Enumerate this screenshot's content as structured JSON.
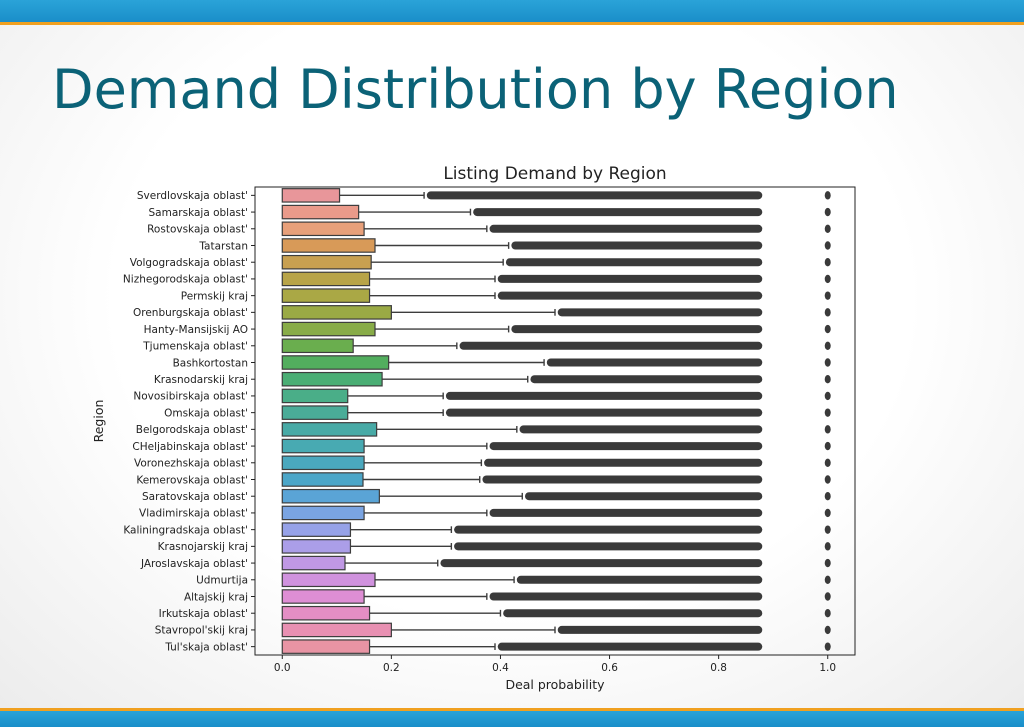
{
  "slide": {
    "title": "Demand Distribution by Region"
  },
  "chart_data": {
    "type": "box",
    "orientation": "horizontal",
    "title": "Listing Demand by Region",
    "xlabel": "Deal probability",
    "ylabel": "Region",
    "xlim": [
      -0.05,
      1.05
    ],
    "xticks": [
      0.0,
      0.2,
      0.4,
      0.6,
      0.8,
      1.0
    ],
    "xtick_labels": [
      "0.0",
      "0.2",
      "0.4",
      "0.6",
      "0.8",
      "1.0"
    ],
    "grid": false,
    "categories": [
      "Sverdlovskaja oblast'",
      "Samarskaja oblast'",
      "Rostovskaja oblast'",
      "Tatarstan",
      "Volgogradskaja oblast'",
      "Nizhegorodskaja oblast'",
      "Permskij kraj",
      "Orenburgskaja oblast'",
      "Hanty-Mansijskij AO",
      "Tjumenskaja oblast'",
      "Bashkortostan",
      "Krasnodarskij kraj",
      "Novosibirskaja oblast'",
      "Omskaja oblast'",
      "Belgorodskaja oblast'",
      "CHeljabinskaja oblast'",
      "Voronezhskaja oblast'",
      "Kemerovskaja oblast'",
      "Saratovskaja oblast'",
      "Vladimirskaja oblast'",
      "Kaliningradskaja oblast'",
      "Krasnojarskij kraj",
      "JAroslavskaja oblast'",
      "Udmurtija",
      "Altajskij kraj",
      "Irkutskaja oblast'",
      "Stavropol'skij kraj",
      "Tul'skaja oblast'"
    ],
    "q1": [
      0,
      0,
      0,
      0,
      0,
      0,
      0,
      0,
      0,
      0,
      0,
      0,
      0,
      0,
      0,
      0,
      0,
      0,
      0,
      0,
      0,
      0,
      0,
      0,
      0,
      0,
      0,
      0
    ],
    "median": [
      0,
      0,
      0,
      0,
      0,
      0,
      0,
      0,
      0,
      0,
      0,
      0,
      0,
      0,
      0,
      0,
      0,
      0,
      0,
      0,
      0,
      0,
      0,
      0,
      0,
      0,
      0,
      0
    ],
    "q3": [
      0.105,
      0.14,
      0.15,
      0.17,
      0.163,
      0.16,
      0.16,
      0.2,
      0.17,
      0.13,
      0.195,
      0.183,
      0.12,
      0.12,
      0.173,
      0.15,
      0.15,
      0.148,
      0.178,
      0.15,
      0.125,
      0.125,
      0.115,
      0.17,
      0.15,
      0.16,
      0.2,
      0.16
    ],
    "whisker_low": [
      0,
      0,
      0,
      0,
      0,
      0,
      0,
      0,
      0,
      0,
      0,
      0,
      0,
      0,
      0,
      0,
      0,
      0,
      0,
      0,
      0,
      0,
      0,
      0,
      0,
      0,
      0,
      0
    ],
    "whisker_high": [
      0.26,
      0.345,
      0.375,
      0.415,
      0.405,
      0.39,
      0.39,
      0.5,
      0.415,
      0.32,
      0.48,
      0.45,
      0.295,
      0.295,
      0.43,
      0.375,
      0.365,
      0.362,
      0.44,
      0.375,
      0.31,
      0.31,
      0.285,
      0.425,
      0.375,
      0.4,
      0.5,
      0.39
    ],
    "outlier_max": [
      0.88,
      0.88,
      0.88,
      0.88,
      0.88,
      0.88,
      0.88,
      0.88,
      0.88,
      0.88,
      0.88,
      0.88,
      0.88,
      0.88,
      0.88,
      0.88,
      0.88,
      0.88,
      0.88,
      0.88,
      0.88,
      0.88,
      0.88,
      0.88,
      0.88,
      0.88,
      0.88,
      0.88
    ],
    "outlier_at_one": true,
    "colors": [
      "#e8969a",
      "#ea9a8a",
      "#e8a07a",
      "#d89a58",
      "#c8a050",
      "#b8a448",
      "#aaa845",
      "#9aaa45",
      "#88ac48",
      "#6aae4e",
      "#52ae5e",
      "#4aae74",
      "#4aae88",
      "#4aac98",
      "#48aaa6",
      "#48aab2",
      "#4aa8be",
      "#4ca6c8",
      "#5aa4d6",
      "#7aa4e2",
      "#96a2e8",
      "#ab9ee8",
      "#c098e4",
      "#d092de",
      "#de8ed4",
      "#e48ec4",
      "#e890b2",
      "#e894a4"
    ],
    "outlier_color": "#3a3a3a"
  }
}
